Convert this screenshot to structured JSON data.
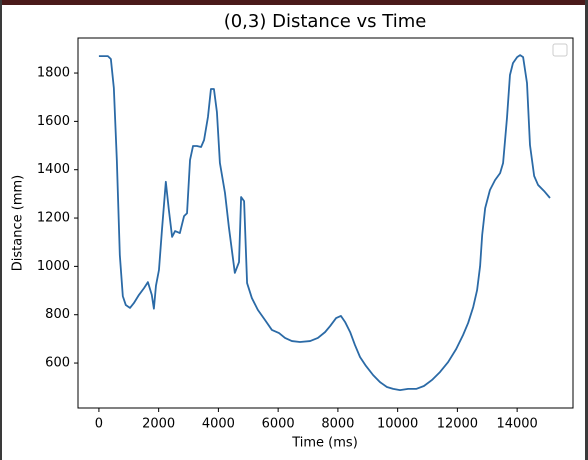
{
  "chart_data": {
    "type": "line",
    "title": "(0,3) Distance vs Time",
    "x_label": "Time (ms)",
    "y_label": "Distance (mm)",
    "xlim": [
      -700,
      15870
    ],
    "ylim": [
      414,
      1945
    ],
    "xticks": [
      0,
      2000,
      4000,
      6000,
      8000,
      10000,
      12000,
      14000
    ],
    "yticks": [
      600,
      800,
      1000,
      1200,
      1400,
      1600,
      1800
    ],
    "series": [
      {
        "color": "#2b6aa6",
        "x": [
          0,
          300,
          400,
          500,
          600,
          700,
          800,
          900,
          1040,
          1170,
          1340,
          1510,
          1640,
          1770,
          1840,
          1910,
          2010,
          2110,
          2240,
          2340,
          2450,
          2550,
          2710,
          2850,
          2950,
          3050,
          3150,
          3280,
          3420,
          3520,
          3650,
          3750,
          3850,
          3950,
          4050,
          4220,
          4350,
          4550,
          4690,
          4760,
          4860,
          4960,
          5120,
          5320,
          5560,
          5790,
          6030,
          6230,
          6460,
          6730,
          7070,
          7330,
          7570,
          7740,
          7940,
          8100,
          8240,
          8410,
          8570,
          8740,
          8940,
          9180,
          9410,
          9640,
          9850,
          10080,
          10350,
          10620,
          10880,
          11150,
          11420,
          11690,
          11960,
          12190,
          12360,
          12530,
          12660,
          12760,
          12830,
          12930,
          13090,
          13260,
          13430,
          13530,
          13660,
          13760,
          13860,
          14000,
          14100,
          14200,
          14330,
          14430,
          14570,
          14700,
          14900,
          15100
        ],
        "values": [
          1870,
          1870,
          1858,
          1738,
          1440,
          1047,
          877,
          840,
          828,
          848,
          882,
          910,
          935,
          882,
          825,
          920,
          985,
          1150,
          1350,
          1235,
          1122,
          1146,
          1138,
          1208,
          1220,
          1440,
          1498,
          1498,
          1494,
          1523,
          1618,
          1734,
          1734,
          1639,
          1428,
          1304,
          1163,
          973,
          1018,
          1287,
          1270,
          931,
          869,
          820,
          778,
          737,
          724,
          704,
          691,
          687,
          691,
          704,
          728,
          753,
          786,
          795,
          770,
          728,
          675,
          625,
          588,
          550,
          521,
          501,
          493,
          488,
          493,
          493,
          505,
          530,
          563,
          604,
          658,
          716,
          766,
          832,
          902,
          1001,
          1130,
          1241,
          1316,
          1357,
          1386,
          1428,
          1614,
          1792,
          1841,
          1866,
          1874,
          1866,
          1759,
          1502,
          1374,
          1337,
          1312,
          1283
        ]
      }
    ]
  }
}
